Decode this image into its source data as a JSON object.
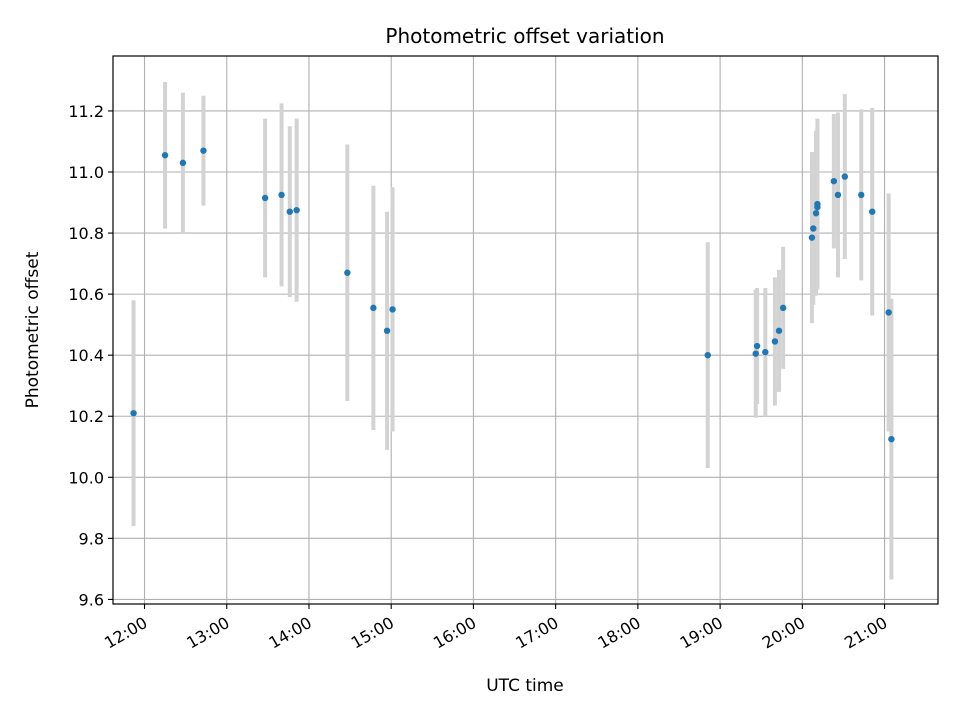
{
  "chart_data": {
    "type": "scatter",
    "title": "Photometric offset variation",
    "xlabel": "UTC time",
    "ylabel": "Photometric offset",
    "grid": true,
    "xlim": [
      "11:37",
      "21:39"
    ],
    "ylim": [
      9.585,
      11.38
    ],
    "x_ticks": [
      "12:00",
      "13:00",
      "14:00",
      "15:00",
      "16:00",
      "17:00",
      "18:00",
      "19:00",
      "20:00",
      "21:00"
    ],
    "y_ticks": [
      "9.6",
      "9.8",
      "10.0",
      "10.2",
      "10.4",
      "10.6",
      "10.8",
      "11.0",
      "11.2"
    ],
    "marker_color": "#1f77b4",
    "errorbar_color": "#d3d3d3",
    "points": [
      {
        "x": "11:52",
        "y": 10.21,
        "err": 0.37
      },
      {
        "x": "12:15",
        "y": 11.055,
        "err": 0.24
      },
      {
        "x": "12:28",
        "y": 11.03,
        "err": 0.23
      },
      {
        "x": "12:43",
        "y": 11.07,
        "err": 0.18
      },
      {
        "x": "13:28",
        "y": 10.915,
        "err": 0.26
      },
      {
        "x": "13:40",
        "y": 10.925,
        "err": 0.3
      },
      {
        "x": "13:46",
        "y": 10.87,
        "err": 0.28
      },
      {
        "x": "13:51",
        "y": 10.875,
        "err": 0.3
      },
      {
        "x": "14:28",
        "y": 10.67,
        "err": 0.42
      },
      {
        "x": "14:47",
        "y": 10.555,
        "err": 0.4
      },
      {
        "x": "14:57",
        "y": 10.48,
        "err": 0.39
      },
      {
        "x": "15:01",
        "y": 10.55,
        "err": 0.4
      },
      {
        "x": "18:51",
        "y": 10.4,
        "err": 0.37
      },
      {
        "x": "19:26",
        "y": 10.405,
        "err": 0.21
      },
      {
        "x": "19:27",
        "y": 10.43,
        "err": 0.19
      },
      {
        "x": "19:33",
        "y": 10.41,
        "err": 0.21
      },
      {
        "x": "19:40",
        "y": 10.445,
        "err": 0.21
      },
      {
        "x": "19:43",
        "y": 10.48,
        "err": 0.2
      },
      {
        "x": "19:46",
        "y": 10.555,
        "err": 0.2
      },
      {
        "x": "20:07",
        "y": 10.785,
        "err": 0.28
      },
      {
        "x": "20:08",
        "y": 10.815,
        "err": 0.25
      },
      {
        "x": "20:10",
        "y": 10.865,
        "err": 0.27
      },
      {
        "x": "20:11",
        "y": 10.885,
        "err": 0.26
      },
      {
        "x": "20:11",
        "y": 10.895,
        "err": 0.28
      },
      {
        "x": "20:23",
        "y": 10.97,
        "err": 0.22
      },
      {
        "x": "20:26",
        "y": 10.925,
        "err": 0.27
      },
      {
        "x": "20:31",
        "y": 10.985,
        "err": 0.27
      },
      {
        "x": "20:43",
        "y": 10.925,
        "err": 0.28
      },
      {
        "x": "20:51",
        "y": 10.87,
        "err": 0.34
      },
      {
        "x": "21:03",
        "y": 10.54,
        "err": 0.39
      },
      {
        "x": "21:05",
        "y": 10.125,
        "err": 0.46
      }
    ]
  }
}
